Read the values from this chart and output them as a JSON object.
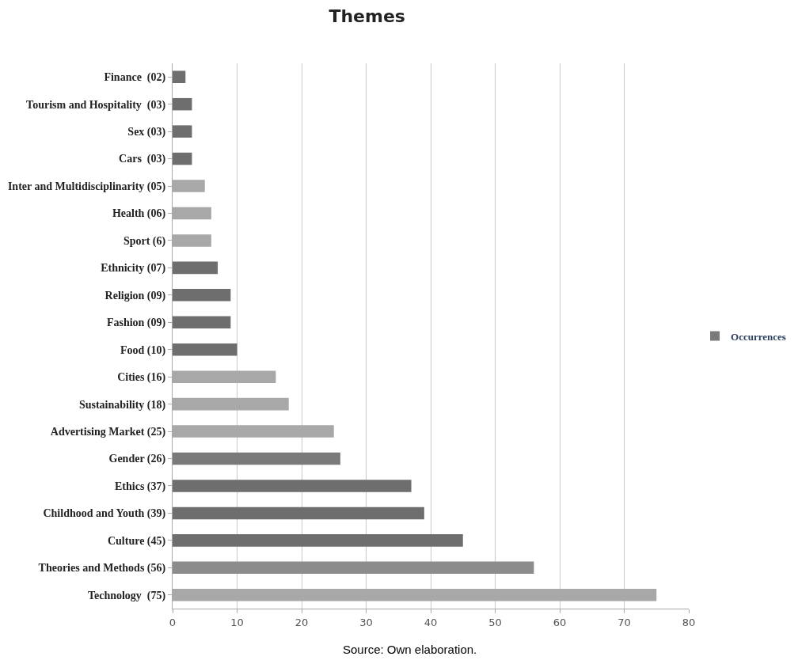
{
  "chart_data": {
    "type": "bar",
    "orientation": "horizontal",
    "title": "Themes",
    "categories": [
      "Finance  (02)",
      "Tourism and Hospitality  (03)",
      "Sex (03)",
      "Cars  (03)",
      "Inter and Multidisciplinarity (05)",
      "Health (06)",
      "Sport (6)",
      "Ethnicity (07)",
      "Religion (09)",
      "Fashion (09)",
      "Food (10)",
      "Cities (16)",
      "Sustainability (18)",
      "Advertising Market (25)",
      "Gender (26)",
      "Ethics (37)",
      "Childhood and Youth (39)",
      "Culture (45)",
      "Theories and Methods (56)",
      "Technology  (75)"
    ],
    "series": [
      {
        "name": "Occurrences",
        "color": "#7a7a7a",
        "values": [
          2,
          3,
          3,
          3,
          5,
          6,
          6,
          7,
          9,
          9,
          10,
          16,
          18,
          25,
          26,
          37,
          39,
          45,
          56,
          75
        ],
        "colors": [
          "#6e6e6e",
          "#6e6e6e",
          "#6e6e6e",
          "#6e6e6e",
          "#a8a8a8",
          "#a8a8a8",
          "#a8a8a8",
          "#6e6e6e",
          "#6e6e6e",
          "#6e6e6e",
          "#6e6e6e",
          "#a8a8a8",
          "#a8a8a8",
          "#a8a8a8",
          "#7a7a7a",
          "#6e6e6e",
          "#6e6e6e",
          "#6e6e6e",
          "#8c8c8c",
          "#a8a8a8"
        ]
      }
    ],
    "xlim": [
      0,
      80
    ],
    "xticks": [
      0,
      10,
      20,
      30,
      40,
      50,
      60,
      70,
      80
    ],
    "grid": "x",
    "legend": "right",
    "annotations": [
      "Source: Own elaboration."
    ]
  }
}
